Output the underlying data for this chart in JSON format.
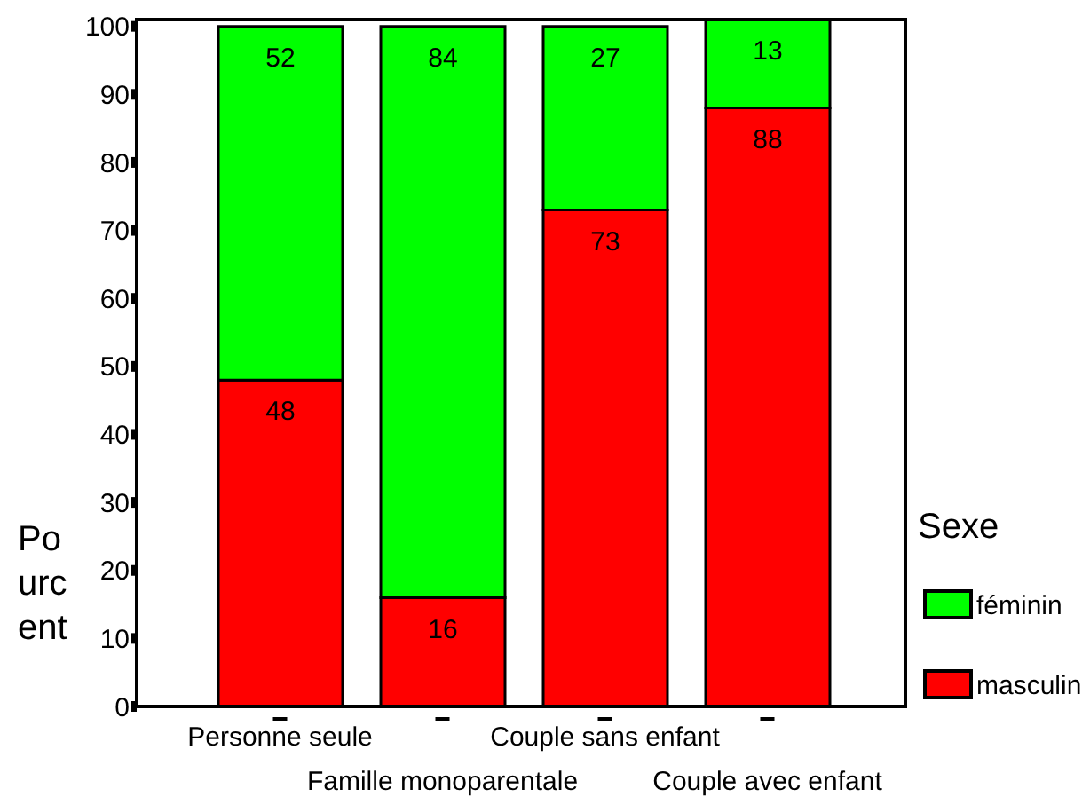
{
  "chart_data": {
    "type": "bar",
    "stacked": true,
    "ylabel": "Pourcent",
    "legend_title": "Sexe",
    "categories": [
      "Personne seule",
      "Famille monoparentale",
      "Couple sans enfant",
      "Couple avec enfant"
    ],
    "series": [
      {
        "name": "masculin",
        "color": "#ff0000",
        "values": [
          48,
          16,
          73,
          88
        ]
      },
      {
        "name": "féminin",
        "color": "#00ff00",
        "values": [
          52,
          84,
          27,
          13
        ]
      }
    ],
    "ylim": [
      0,
      101
    ],
    "yticks": [
      0,
      10,
      20,
      30,
      40,
      50,
      60,
      70,
      80,
      90,
      100
    ],
    "legend": "right",
    "data_labels": true
  }
}
